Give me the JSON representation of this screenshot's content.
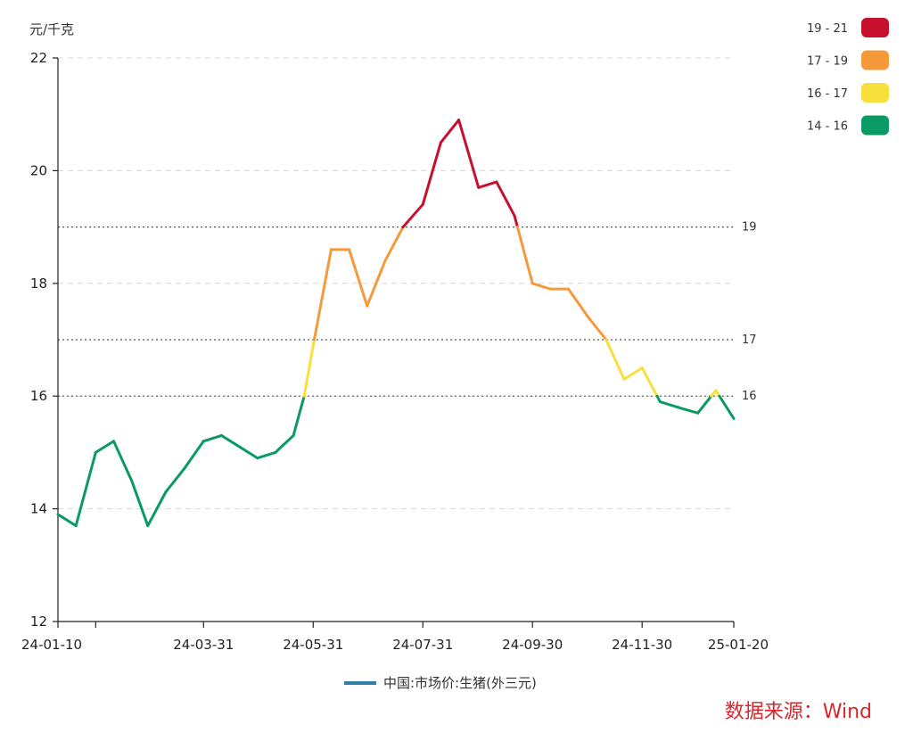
{
  "chart_data": {
    "type": "line",
    "y_unit": "元/千克",
    "ylim": [
      12,
      22
    ],
    "yticks": [
      12,
      14,
      16,
      18,
      20,
      22
    ],
    "x_tick_labels": [
      "24-01-10",
      "24-03-31",
      "24-05-31",
      "24-07-31",
      "24-09-30",
      "24-11-30",
      "25-01-20"
    ],
    "grid": true,
    "reference_lines": [
      {
        "value": 19,
        "label": "19"
      },
      {
        "value": 17,
        "label": "17"
      },
      {
        "value": 16,
        "label": "16"
      }
    ],
    "color_bands": [
      {
        "label": "19 - 21",
        "min": 19,
        "max": 21,
        "color": "#c8102e"
      },
      {
        "label": "17 - 19",
        "min": 17,
        "max": 19,
        "color": "#f5993a"
      },
      {
        "label": "16 - 17",
        "min": 16,
        "max": 17,
        "color": "#f7e03c"
      },
      {
        "label": "14 - 16",
        "min": 14,
        "max": 16,
        "color": "#0a9a63"
      }
    ],
    "series": [
      {
        "name": "中国:市场价:生猪(外三元)",
        "legend_color": "#2e7ea8",
        "points": [
          [
            "24-01-10",
            13.9
          ],
          [
            "24-01-20",
            13.7
          ],
          [
            "24-01-31",
            15.0
          ],
          [
            "24-02-10",
            15.2
          ],
          [
            "24-02-20",
            14.5
          ],
          [
            "24-02-29",
            13.7
          ],
          [
            "24-03-10",
            14.3
          ],
          [
            "24-03-20",
            14.7
          ],
          [
            "24-03-31",
            15.2
          ],
          [
            "24-04-10",
            15.3
          ],
          [
            "24-04-20",
            15.1
          ],
          [
            "24-04-30",
            14.9
          ],
          [
            "24-05-10",
            15.0
          ],
          [
            "24-05-20",
            15.3
          ],
          [
            "24-05-26",
            16.0
          ],
          [
            "24-05-31",
            16.9
          ],
          [
            "24-06-10",
            18.6
          ],
          [
            "24-06-20",
            18.6
          ],
          [
            "24-06-30",
            17.6
          ],
          [
            "24-07-10",
            18.4
          ],
          [
            "24-07-20",
            19.0
          ],
          [
            "24-07-31",
            19.4
          ],
          [
            "24-08-10",
            20.5
          ],
          [
            "24-08-20",
            20.9
          ],
          [
            "24-08-31",
            19.7
          ],
          [
            "24-09-10",
            19.8
          ],
          [
            "24-09-20",
            19.2
          ],
          [
            "24-09-30",
            18.0
          ],
          [
            "24-10-10",
            17.9
          ],
          [
            "24-10-20",
            17.9
          ],
          [
            "24-10-31",
            17.4
          ],
          [
            "24-11-10",
            17.0
          ],
          [
            "24-11-20",
            16.3
          ],
          [
            "24-11-30",
            16.5
          ],
          [
            "24-12-10",
            15.9
          ],
          [
            "24-12-20",
            15.8
          ],
          [
            "24-12-31",
            15.7
          ],
          [
            "25-01-10",
            16.1
          ],
          [
            "25-01-20",
            15.6
          ]
        ]
      }
    ]
  },
  "source_text": "数据来源：Wind"
}
